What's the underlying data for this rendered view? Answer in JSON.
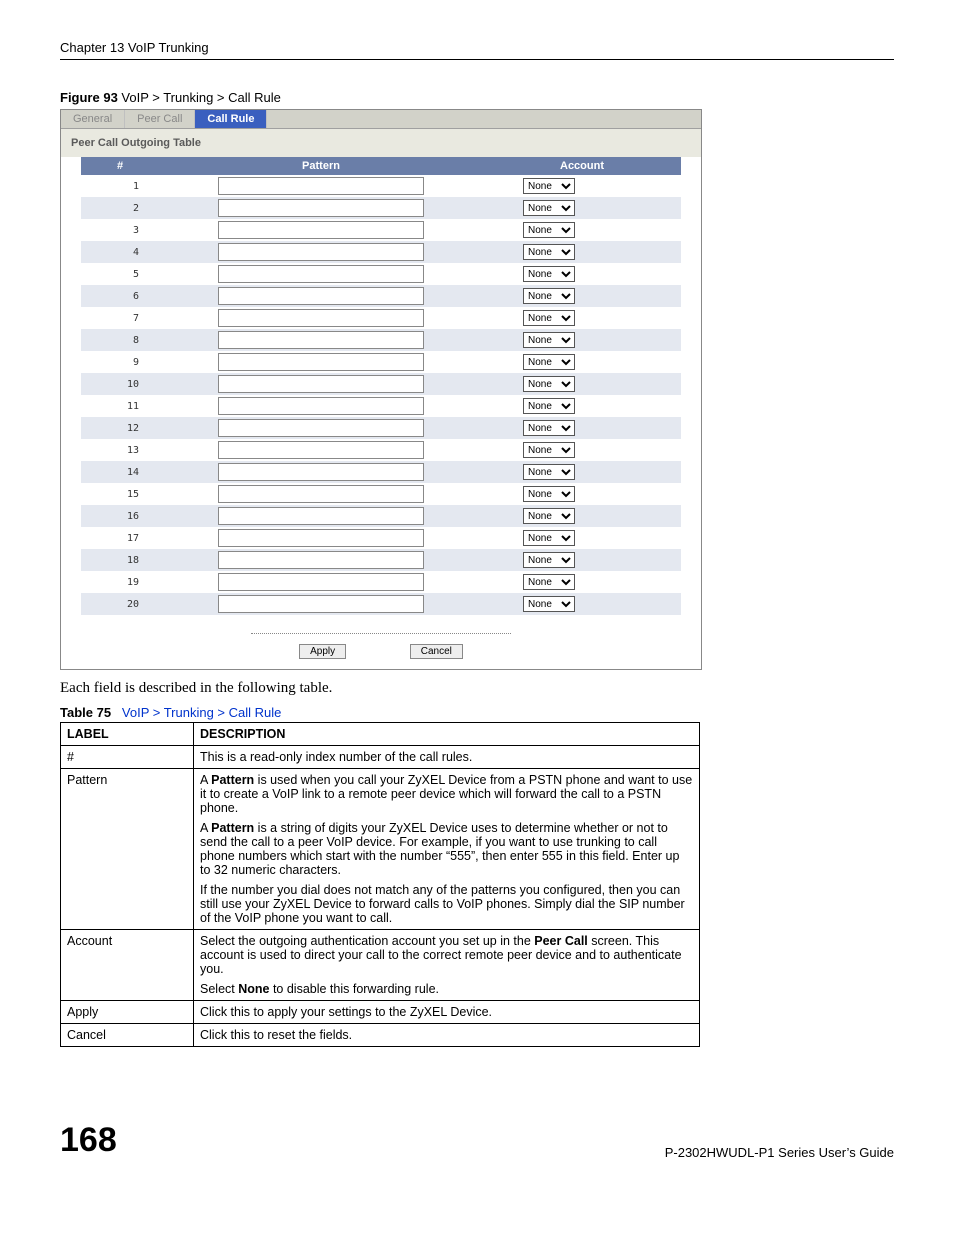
{
  "chapter_header": "Chapter 13 VoIP Trunking",
  "figure_caption_bold": "Figure 93",
  "figure_caption_rest": "   VoIP > Trunking > Call Rule",
  "tabs": [
    "General",
    "Peer Call",
    "Call Rule"
  ],
  "active_tab_index": 2,
  "section_title": "Peer Call Outgoing Table",
  "rule_headers": {
    "num": "#",
    "pattern": "Pattern",
    "account": "Account"
  },
  "rows": [
    1,
    2,
    3,
    4,
    5,
    6,
    7,
    8,
    9,
    10,
    11,
    12,
    13,
    14,
    15,
    16,
    17,
    18,
    19,
    20
  ],
  "account_option": "None",
  "apply_label": "Apply",
  "cancel_label": "Cancel",
  "intro_text": "Each field is described in the following table.",
  "table_caption_bold": "Table 75",
  "table_caption_link": "VoIP > Trunking > Call Rule",
  "desc_headers": {
    "label": "LABEL",
    "description": "DESCRIPTION"
  },
  "desc_rows": [
    {
      "label": "#",
      "paragraphs": [
        "This is a read-only index number of the call rules."
      ]
    },
    {
      "label": "Pattern",
      "paragraphs": [
        "A <b>Pattern</b> is used when you call your ZyXEL Device from a PSTN phone and want to use it to create a VoIP link to a remote peer device which will forward the call to a PSTN phone.",
        "A <b>Pattern</b> is a string of digits your ZyXEL Device uses to determine whether or not to send the call to a peer VoIP device. For example, if you want to use trunking to call phone numbers which start with the number “555”, then enter 555 in this field. Enter up to 32 numeric characters.",
        "If the number you dial does not match any of the patterns you configured, then you can still use your ZyXEL Device to forward calls to VoIP phones. Simply dial the SIP number of the VoIP phone you want to call."
      ]
    },
    {
      "label": "Account",
      "paragraphs": [
        "Select the outgoing authentication account you set up in the <b>Peer Call</b> screen. This account is used to direct your call to the correct remote peer device and to authenticate you.",
        "Select <b>None</b> to disable this forwarding rule."
      ]
    },
    {
      "label": "Apply",
      "paragraphs": [
        "Click this to apply your settings to the ZyXEL Device."
      ]
    },
    {
      "label": "Cancel",
      "paragraphs": [
        "Click this to reset the fields."
      ]
    }
  ],
  "page_number": "168",
  "guide_title": "P-2302HWUDL-P1 Series User’s Guide"
}
